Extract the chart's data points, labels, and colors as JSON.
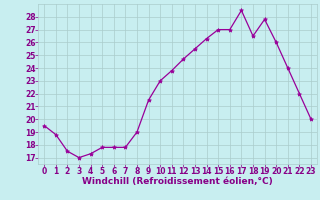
{
  "x": [
    0,
    1,
    2,
    3,
    4,
    5,
    6,
    7,
    8,
    9,
    10,
    11,
    12,
    13,
    14,
    15,
    16,
    17,
    18,
    19,
    20,
    21,
    22,
    23
  ],
  "y": [
    19.5,
    18.8,
    17.5,
    17.0,
    17.3,
    17.8,
    17.8,
    17.8,
    19.0,
    21.5,
    23.0,
    23.8,
    24.7,
    25.5,
    26.3,
    27.0,
    27.0,
    28.5,
    26.5,
    27.8,
    26.0,
    24.0,
    22.0,
    20.0
  ],
  "line_color": "#990099",
  "marker": "*",
  "marker_size": 3,
  "xlabel": "Windchill (Refroidissement éolien,°C)",
  "ylim_min": 16.5,
  "ylim_max": 29.0,
  "xlim_min": -0.5,
  "xlim_max": 23.5,
  "yticks": [
    17,
    18,
    19,
    20,
    21,
    22,
    23,
    24,
    25,
    26,
    27,
    28
  ],
  "xticks": [
    0,
    1,
    2,
    3,
    4,
    5,
    6,
    7,
    8,
    9,
    10,
    11,
    12,
    13,
    14,
    15,
    16,
    17,
    18,
    19,
    20,
    21,
    22,
    23
  ],
  "background_color": "#c8eef0",
  "grid_color": "#aacccc",
  "line_grid_color": "#aacccc",
  "tick_label_color": "#880088",
  "xlabel_color": "#880088",
  "tick_fontsize": 5.5,
  "xlabel_fontsize": 6.5
}
